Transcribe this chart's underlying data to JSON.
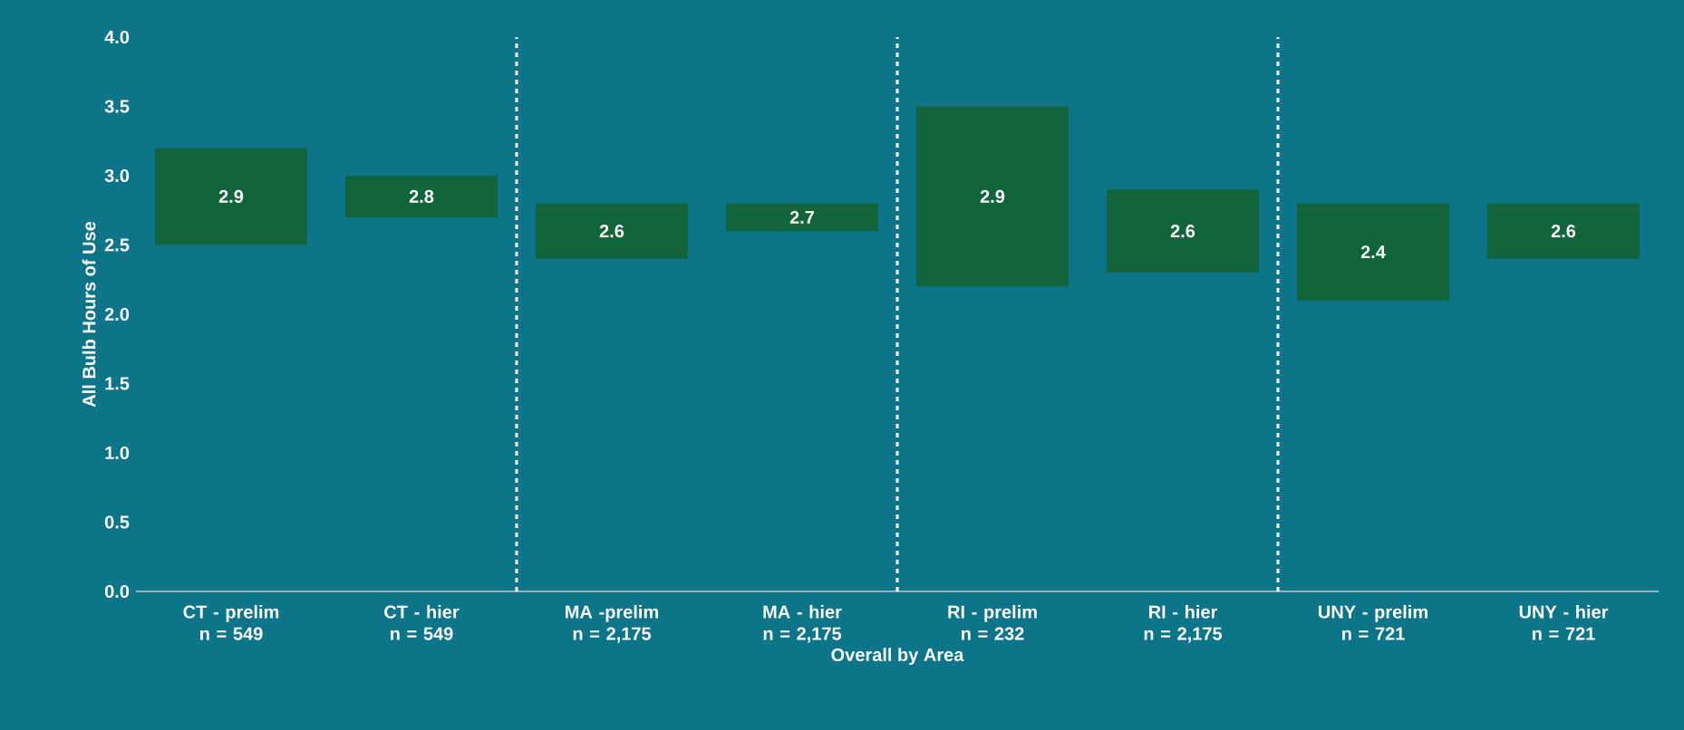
{
  "chart_data": {
    "type": "bar",
    "xlabel": "Overall by Area",
    "ylabel": "All Bulb Hours of Use",
    "categories": [
      "CT - prelim\nn = 549",
      "CT - hier\nn = 549",
      "MA -prelim\nn = 2,175",
      "MA - hier\nn = 2,175",
      "RI - prelim\nn = 232",
      "RI - hier\nn = 2,175",
      "UNY - prelim\nn = 721",
      "UNY - hier\nn = 721"
    ],
    "base": [
      2.5,
      2.7,
      2.4,
      2.6,
      2.2,
      2.3,
      2.1,
      2.4
    ],
    "values": [
      0.7,
      0.3,
      0.4,
      0.2,
      1.3,
      0.6,
      0.7,
      0.4
    ],
    "color": "#12653a",
    "ylim": [
      0,
      4
    ],
    "yticks": [
      {
        "value": 0,
        "label": "0.0"
      },
      {
        "value": 0.5,
        "label": "0.5"
      },
      {
        "value": 1,
        "label": "1.0"
      },
      {
        "value": 1.5,
        "label": "1.5"
      },
      {
        "value": 2,
        "label": "2.0"
      },
      {
        "value": 2.5,
        "label": "2.5"
      },
      {
        "value": 3,
        "label": "3.0"
      },
      {
        "value": 3.5,
        "label": "3.5"
      },
      {
        "value": 4,
        "label": "4.0"
      }
    ],
    "annotations": [
      "2.9",
      "2.8",
      "2.6",
      "2.7",
      "2.9",
      "2.6",
      "2.4",
      "2.6"
    ]
  }
}
